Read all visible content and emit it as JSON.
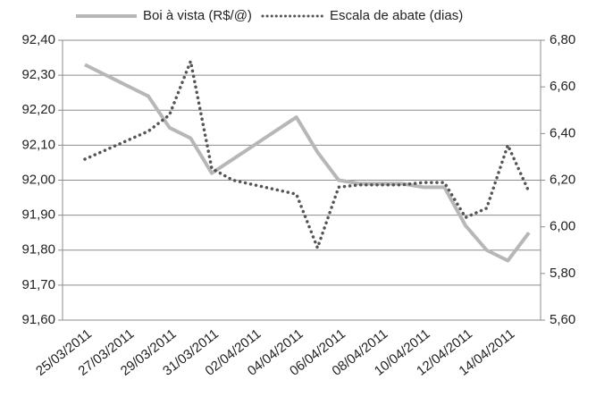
{
  "chart_data": {
    "type": "line",
    "categories": [
      "25/03/2011",
      null,
      "27/03/2011",
      null,
      "29/03/2011",
      null,
      "31/03/2011",
      null,
      "02/04/2011",
      null,
      "04/04/2011",
      null,
      "06/04/2011",
      null,
      "08/04/2011",
      null,
      "10/04/2011",
      null,
      "12/04/2011",
      null,
      "14/04/2011",
      null
    ],
    "series": [
      {
        "name": "Boi à vista (R$/@)",
        "color": "#b7b7b7",
        "style": "solid",
        "values": [
          92.33,
          92.3,
          92.27,
          92.24,
          92.15,
          92.12,
          92.02,
          92.06,
          92.1,
          92.14,
          92.18,
          92.08,
          92.0,
          91.99,
          91.99,
          91.99,
          91.98,
          91.98,
          91.87,
          91.8,
          91.77,
          91.85
        ]
      },
      {
        "name": "Escala de abate (dias)",
        "color": "#555555",
        "style": "dotted",
        "axis": "y2",
        "values": [
          6.29,
          6.33,
          6.37,
          6.41,
          6.48,
          6.71,
          6.25,
          6.2,
          6.18,
          6.16,
          6.14,
          5.91,
          6.17,
          6.18,
          6.18,
          6.18,
          6.19,
          6.19,
          6.04,
          6.08,
          6.35,
          6.15
        ]
      }
    ],
    "ylim": [
      91.6,
      92.4
    ],
    "yticks": [
      {
        "value": 91.6,
        "label": "91,60"
      },
      {
        "value": 91.7,
        "label": "91,70"
      },
      {
        "value": 91.8,
        "label": "91,80"
      },
      {
        "value": 91.9,
        "label": "91,90"
      },
      {
        "value": 92.0,
        "label": "92,00"
      },
      {
        "value": 92.1,
        "label": "92,10"
      },
      {
        "value": 92.2,
        "label": "92,20"
      },
      {
        "value": 92.3,
        "label": "92,30"
      },
      {
        "value": 92.4,
        "label": "92,40"
      }
    ],
    "y2lim": [
      5.6,
      6.8
    ],
    "y2ticks": [
      {
        "value": 5.6,
        "label": "5,60"
      },
      {
        "value": 5.8,
        "label": "5,80"
      },
      {
        "value": 6.0,
        "label": "6,00"
      },
      {
        "value": 6.2,
        "label": "6,20"
      },
      {
        "value": 6.4,
        "label": "6,40"
      },
      {
        "value": 6.6,
        "label": "6,60"
      },
      {
        "value": 6.8,
        "label": "6,80"
      }
    ],
    "grid": true,
    "legend": "top"
  }
}
